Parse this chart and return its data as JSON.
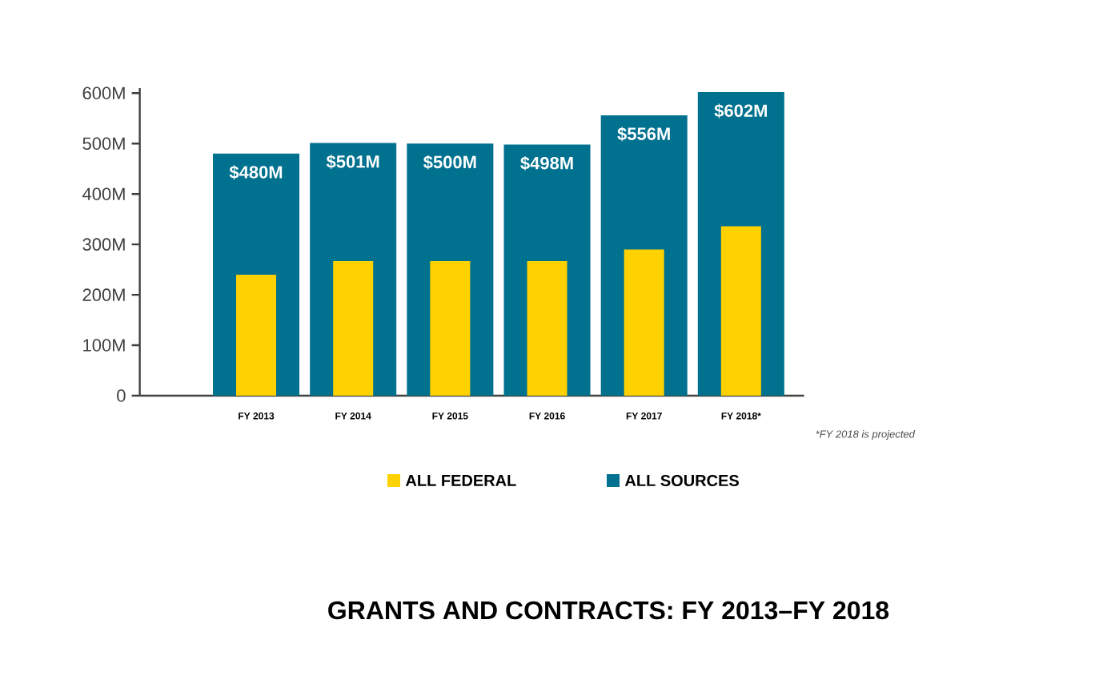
{
  "chart_data": {
    "type": "bar",
    "title": "GRANTS AND CONTRACTS: FY 2013–FY 2018",
    "categories": [
      "FY 2013",
      "FY 2014",
      "FY 2015",
      "FY 2016",
      "FY 2017",
      "FY 2018*"
    ],
    "series": [
      {
        "name": "ALL FEDERAL",
        "color": "#ffd100",
        "values": [
          240,
          267,
          267,
          267,
          290,
          336
        ]
      },
      {
        "name": "ALL SOURCES",
        "color": "#00718f",
        "values": [
          480,
          501,
          500,
          498,
          556,
          602
        ],
        "value_labels": [
          "$480M",
          "$501M",
          "$500M",
          "$498M",
          "$556M",
          "$602M"
        ]
      }
    ],
    "ylim": [
      0,
      610
    ],
    "yticks": [
      {
        "value": 0,
        "label": "0"
      },
      {
        "value": 100,
        "label": "100M"
      },
      {
        "value": 200,
        "label": "200M"
      },
      {
        "value": 300,
        "label": "300M"
      },
      {
        "value": 400,
        "label": "400M"
      },
      {
        "value": 500,
        "label": "500M"
      },
      {
        "value": 600,
        "label": "600M"
      }
    ],
    "legend": "bottom",
    "annotations": [
      "*FY 2018 is projected"
    ]
  }
}
